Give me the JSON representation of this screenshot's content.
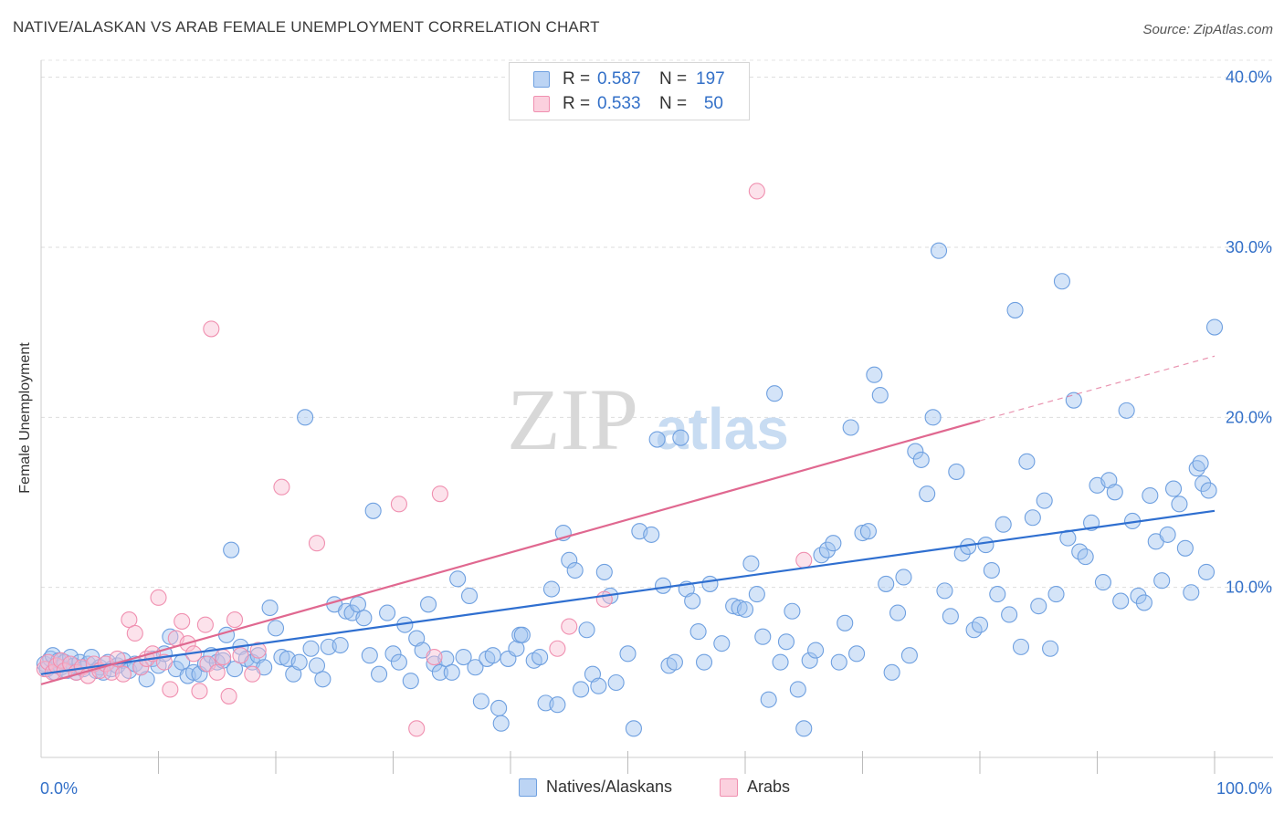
{
  "title": "NATIVE/ALASKAN VS ARAB FEMALE UNEMPLOYMENT CORRELATION CHART",
  "source": "Source: ZipAtlas.com",
  "watermark": {
    "zip": "ZIP",
    "atlas": "atlas"
  },
  "legend_top": [
    {
      "r_label": "R = ",
      "r_value": "0.587",
      "n_label": "N = ",
      "n_value": "197",
      "color": "#6fa0e0"
    },
    {
      "r_label": "R = ",
      "r_value": "0.533",
      "n_label": "N = ",
      "n_value": "50",
      "color": "#f090b0"
    }
  ],
  "legend_bottom": [
    {
      "label": "Natives/Alaskans",
      "color": "#6fa0e0"
    },
    {
      "label": "Arabs",
      "color": "#f090b0"
    }
  ],
  "chart_data": {
    "type": "scatter",
    "title": "NATIVE/ALASKAN VS ARAB FEMALE UNEMPLOYMENT CORRELATION CHART",
    "xlabel": "",
    "ylabel": "Female Unemployment",
    "xlim": [
      0,
      100
    ],
    "ylim": [
      0,
      41
    ],
    "x_tick_labels": [
      "0.0%",
      "100.0%"
    ],
    "y_ticks": [
      10,
      20,
      30,
      40
    ],
    "y_tick_labels": [
      "10.0%",
      "20.0%",
      "30.0%",
      "40.0%"
    ],
    "grid": "horizontal dashed",
    "legend": "top-center and bottom",
    "series": [
      {
        "name": "Natives/Alaskans",
        "color": "#6fa0e0",
        "line_color": "#2f6fd0",
        "trend": {
          "x0": 0,
          "y0": 4.9,
          "x1": 100,
          "y1": 14.5
        },
        "points": [
          [
            0.3,
            5.5
          ],
          [
            0.5,
            5.2
          ],
          [
            0.8,
            5.8
          ],
          [
            1.0,
            6.0
          ],
          [
            1.2,
            5.0
          ],
          [
            1.5,
            5.7
          ],
          [
            1.7,
            5.3
          ],
          [
            2.0,
            5.6
          ],
          [
            2.2,
            5.1
          ],
          [
            2.5,
            5.9
          ],
          [
            2.8,
            5.4
          ],
          [
            3.0,
            5.0
          ],
          [
            3.3,
            5.6
          ],
          [
            3.6,
            5.2
          ],
          [
            4.0,
            5.5
          ],
          [
            4.3,
            5.9
          ],
          [
            4.7,
            5.1
          ],
          [
            5.0,
            5.3
          ],
          [
            5.3,
            5.0
          ],
          [
            5.7,
            5.6
          ],
          [
            6.0,
            5.2
          ],
          [
            6.5,
            5.4
          ],
          [
            7.0,
            5.7
          ],
          [
            7.5,
            5.1
          ],
          [
            8.0,
            5.5
          ],
          [
            8.5,
            5.3
          ],
          [
            9.0,
            4.6
          ],
          [
            9.5,
            5.8
          ],
          [
            10.0,
            5.4
          ],
          [
            10.5,
            6.1
          ],
          [
            11.0,
            7.1
          ],
          [
            11.5,
            5.2
          ],
          [
            12.0,
            5.6
          ],
          [
            12.5,
            4.8
          ],
          [
            13.0,
            5.0
          ],
          [
            13.5,
            4.9
          ],
          [
            14.0,
            5.5
          ],
          [
            14.5,
            6.0
          ],
          [
            15.0,
            5.6
          ],
          [
            15.5,
            5.7
          ],
          [
            15.8,
            7.2
          ],
          [
            16.2,
            12.2
          ],
          [
            16.5,
            5.2
          ],
          [
            17.0,
            6.5
          ],
          [
            17.5,
            5.8
          ],
          [
            18.0,
            5.6
          ],
          [
            18.5,
            6.0
          ],
          [
            19.0,
            5.3
          ],
          [
            19.5,
            8.8
          ],
          [
            20.0,
            7.6
          ],
          [
            20.5,
            5.9
          ],
          [
            21.0,
            5.8
          ],
          [
            21.5,
            4.9
          ],
          [
            22.0,
            5.6
          ],
          [
            22.5,
            20.0
          ],
          [
            23.0,
            6.4
          ],
          [
            23.5,
            5.4
          ],
          [
            24.0,
            4.6
          ],
          [
            24.5,
            6.5
          ],
          [
            25.0,
            9.0
          ],
          [
            25.5,
            6.6
          ],
          [
            26.0,
            8.6
          ],
          [
            26.5,
            8.5
          ],
          [
            27.0,
            9.0
          ],
          [
            27.5,
            8.2
          ],
          [
            28.0,
            6.0
          ],
          [
            28.3,
            14.5
          ],
          [
            28.8,
            4.9
          ],
          [
            29.5,
            8.5
          ],
          [
            30.0,
            6.1
          ],
          [
            30.5,
            5.6
          ],
          [
            31.0,
            7.8
          ],
          [
            31.5,
            4.5
          ],
          [
            32.0,
            7.0
          ],
          [
            32.5,
            6.3
          ],
          [
            33.0,
            9.0
          ],
          [
            33.5,
            5.5
          ],
          [
            34.0,
            5.0
          ],
          [
            34.5,
            5.8
          ],
          [
            35.0,
            5.0
          ],
          [
            35.5,
            10.5
          ],
          [
            36.0,
            5.9
          ],
          [
            36.5,
            9.5
          ],
          [
            37.0,
            5.3
          ],
          [
            37.5,
            3.3
          ],
          [
            38.0,
            5.8
          ],
          [
            38.5,
            6.0
          ],
          [
            39.0,
            2.9
          ],
          [
            39.2,
            2.0
          ],
          [
            39.8,
            5.8
          ],
          [
            40.5,
            6.4
          ],
          [
            40.8,
            7.2
          ],
          [
            41.0,
            7.2
          ],
          [
            42.0,
            5.7
          ],
          [
            42.5,
            5.9
          ],
          [
            43.0,
            3.2
          ],
          [
            43.5,
            9.9
          ],
          [
            44.0,
            3.1
          ],
          [
            44.5,
            13.2
          ],
          [
            45.0,
            11.6
          ],
          [
            45.5,
            11.0
          ],
          [
            46.0,
            4.0
          ],
          [
            46.5,
            7.5
          ],
          [
            47.0,
            4.9
          ],
          [
            47.5,
            4.2
          ],
          [
            48.0,
            10.9
          ],
          [
            48.5,
            9.5
          ],
          [
            49.0,
            4.4
          ],
          [
            50.0,
            6.1
          ],
          [
            50.5,
            1.7
          ],
          [
            51.0,
            13.3
          ],
          [
            52.0,
            13.1
          ],
          [
            52.5,
            18.7
          ],
          [
            53.0,
            10.1
          ],
          [
            53.5,
            5.4
          ],
          [
            54.0,
            5.6
          ],
          [
            54.5,
            18.8
          ],
          [
            55.0,
            9.9
          ],
          [
            55.5,
            9.2
          ],
          [
            56.0,
            7.4
          ],
          [
            56.5,
            5.6
          ],
          [
            57.0,
            10.2
          ],
          [
            58.0,
            6.7
          ],
          [
            59.0,
            8.9
          ],
          [
            59.5,
            8.8
          ],
          [
            60.0,
            8.7
          ],
          [
            60.5,
            11.4
          ],
          [
            61.0,
            9.6
          ],
          [
            61.5,
            7.1
          ],
          [
            62.0,
            3.4
          ],
          [
            62.5,
            21.4
          ],
          [
            63.0,
            5.6
          ],
          [
            63.5,
            6.8
          ],
          [
            64.0,
            8.6
          ],
          [
            64.5,
            4.0
          ],
          [
            65.0,
            1.7
          ],
          [
            65.5,
            5.7
          ],
          [
            66.0,
            6.3
          ],
          [
            66.5,
            11.9
          ],
          [
            67.0,
            12.2
          ],
          [
            67.5,
            12.6
          ],
          [
            68.0,
            5.6
          ],
          [
            68.5,
            7.9
          ],
          [
            69.0,
            19.4
          ],
          [
            69.5,
            6.1
          ],
          [
            70.0,
            13.2
          ],
          [
            70.5,
            13.3
          ],
          [
            71.0,
            22.5
          ],
          [
            71.5,
            21.3
          ],
          [
            72.0,
            10.2
          ],
          [
            72.5,
            5.0
          ],
          [
            73.0,
            8.5
          ],
          [
            73.5,
            10.6
          ],
          [
            74.0,
            6.0
          ],
          [
            74.5,
            18.0
          ],
          [
            75.0,
            17.5
          ],
          [
            75.5,
            15.5
          ],
          [
            76.0,
            20.0
          ],
          [
            76.5,
            29.8
          ],
          [
            77.0,
            9.8
          ],
          [
            77.5,
            8.3
          ],
          [
            78.0,
            16.8
          ],
          [
            78.5,
            12.0
          ],
          [
            79.0,
            12.4
          ],
          [
            79.5,
            7.5
          ],
          [
            80.0,
            7.8
          ],
          [
            80.5,
            12.5
          ],
          [
            81.0,
            11.0
          ],
          [
            81.5,
            9.6
          ],
          [
            82.0,
            13.7
          ],
          [
            82.5,
            8.4
          ],
          [
            83.0,
            26.3
          ],
          [
            83.5,
            6.5
          ],
          [
            84.0,
            17.4
          ],
          [
            84.5,
            14.1
          ],
          [
            85.0,
            8.9
          ],
          [
            85.5,
            15.1
          ],
          [
            86.0,
            6.4
          ],
          [
            86.5,
            9.6
          ],
          [
            87.0,
            28.0
          ],
          [
            87.5,
            12.9
          ],
          [
            88.0,
            21.0
          ],
          [
            88.5,
            12.1
          ],
          [
            89.0,
            11.8
          ],
          [
            89.5,
            13.8
          ],
          [
            90.0,
            16.0
          ],
          [
            90.5,
            10.3
          ],
          [
            91.0,
            16.3
          ],
          [
            91.5,
            15.6
          ],
          [
            92.0,
            9.2
          ],
          [
            92.5,
            20.4
          ],
          [
            93.0,
            13.9
          ],
          [
            93.5,
            9.5
          ],
          [
            94.0,
            9.1
          ],
          [
            94.5,
            15.4
          ],
          [
            95.0,
            12.7
          ],
          [
            95.5,
            10.4
          ],
          [
            96.0,
            13.1
          ],
          [
            96.5,
            15.8
          ],
          [
            97.0,
            14.9
          ],
          [
            97.5,
            12.3
          ],
          [
            98.0,
            9.7
          ],
          [
            98.5,
            17.0
          ],
          [
            99.0,
            16.1
          ],
          [
            99.5,
            15.7
          ],
          [
            100.0,
            25.3
          ],
          [
            99.3,
            10.9
          ],
          [
            98.8,
            17.3
          ]
        ]
      },
      {
        "name": "Arabs",
        "color": "#f090b0",
        "line_color": "#e06890",
        "trend": {
          "x0": 0,
          "y0": 4.3,
          "x1": 80,
          "y1": 19.8
        },
        "trend_dashed": {
          "x0": 80,
          "y0": 19.8,
          "x1": 100,
          "y1": 23.6
        },
        "points": [
          [
            0.3,
            5.2
          ],
          [
            0.6,
            5.6
          ],
          [
            1.0,
            5.0
          ],
          [
            1.3,
            5.4
          ],
          [
            1.7,
            5.7
          ],
          [
            2.0,
            5.1
          ],
          [
            2.5,
            5.5
          ],
          [
            3.0,
            5.0
          ],
          [
            3.5,
            5.3
          ],
          [
            4.0,
            4.8
          ],
          [
            4.5,
            5.5
          ],
          [
            5.0,
            5.1
          ],
          [
            5.5,
            5.5
          ],
          [
            6.0,
            5.0
          ],
          [
            6.5,
            5.8
          ],
          [
            7.0,
            4.9
          ],
          [
            7.5,
            8.1
          ],
          [
            8.0,
            7.3
          ],
          [
            8.5,
            5.3
          ],
          [
            9.0,
            5.8
          ],
          [
            9.5,
            6.1
          ],
          [
            10.0,
            9.4
          ],
          [
            10.5,
            5.6
          ],
          [
            11.0,
            4.0
          ],
          [
            11.5,
            7.0
          ],
          [
            12.0,
            8.0
          ],
          [
            12.5,
            6.7
          ],
          [
            13.0,
            6.1
          ],
          [
            13.5,
            3.9
          ],
          [
            14.0,
            7.8
          ],
          [
            14.2,
            5.5
          ],
          [
            14.5,
            25.2
          ],
          [
            15.0,
            5.0
          ],
          [
            15.5,
            5.9
          ],
          [
            16.0,
            3.6
          ],
          [
            16.5,
            8.1
          ],
          [
            17.0,
            6.0
          ],
          [
            18.0,
            4.9
          ],
          [
            18.5,
            6.3
          ],
          [
            20.5,
            15.9
          ],
          [
            23.5,
            12.6
          ],
          [
            30.5,
            14.9
          ],
          [
            32.0,
            1.7
          ],
          [
            33.5,
            5.9
          ],
          [
            34.0,
            15.5
          ],
          [
            44.0,
            6.4
          ],
          [
            45.0,
            7.7
          ],
          [
            48.0,
            9.3
          ],
          [
            61.0,
            33.3
          ],
          [
            65.0,
            11.6
          ]
        ]
      }
    ]
  }
}
